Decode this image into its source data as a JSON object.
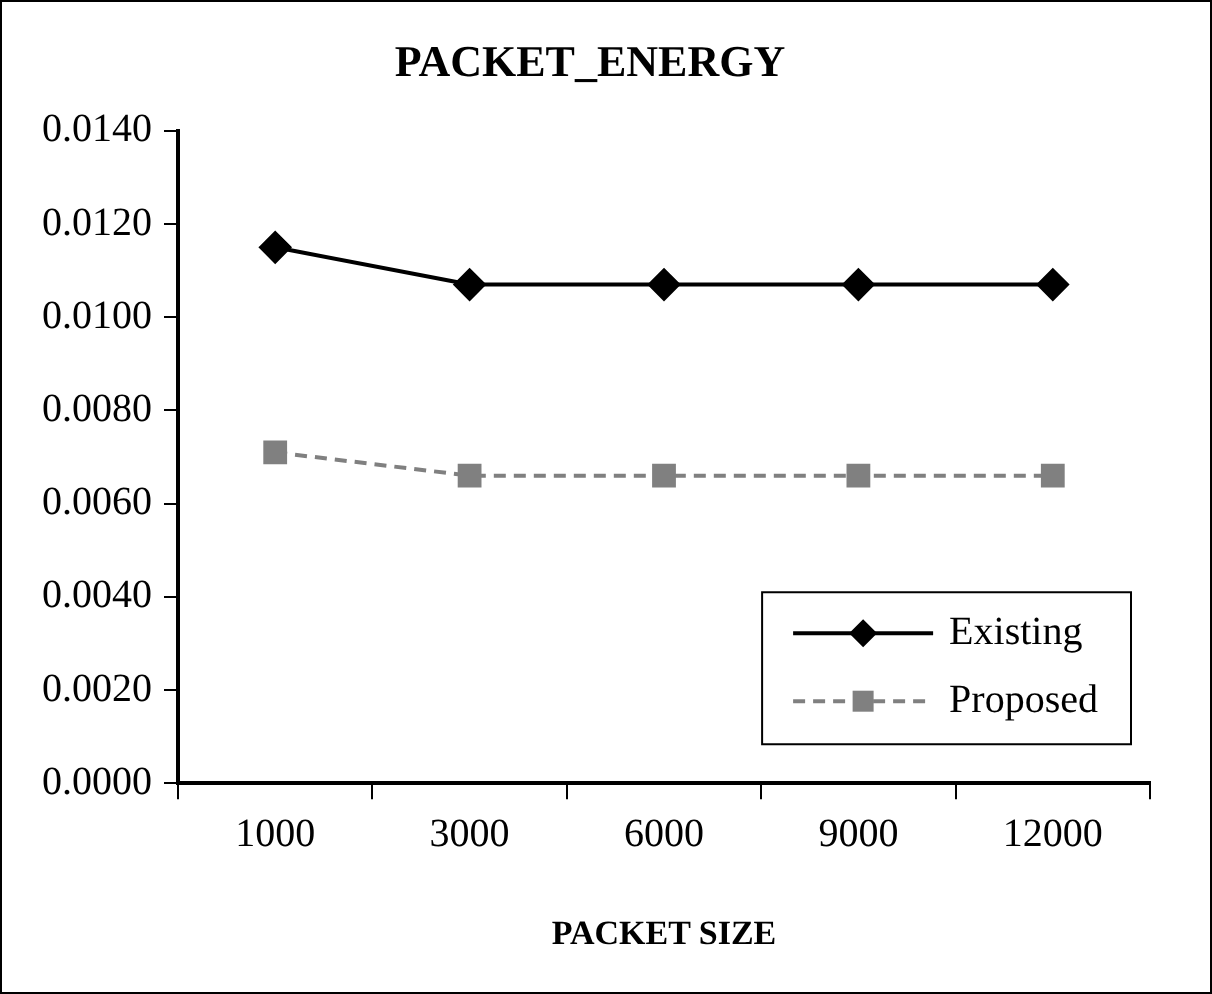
{
  "chart_data": {
    "type": "line",
    "title": "PACKET_ENERGY",
    "xlabel": "PACKET SIZE",
    "categories": [
      "1000",
      "3000",
      "6000",
      "9000",
      "12000"
    ],
    "series": [
      {
        "name": "Existing",
        "color": "#000000",
        "values": [
          0.0115,
          0.0107,
          0.0107,
          0.0107,
          0.0107
        ],
        "marker": "diamond",
        "line_style": "solid"
      },
      {
        "name": "Proposed",
        "color": "#808080",
        "values": [
          0.0071,
          0.0066,
          0.0066,
          0.0066,
          0.0066
        ],
        "marker": "square",
        "line_style": "dashed"
      }
    ],
    "ylim": [
      0,
      0.014
    ],
    "yticks": [
      {
        "value": 0,
        "label": "0.0000"
      },
      {
        "value": 0.002,
        "label": "0.0020"
      },
      {
        "value": 0.004,
        "label": "0.0040"
      },
      {
        "value": 0.006,
        "label": "0.0060"
      },
      {
        "value": 0.008,
        "label": "0.0080"
      },
      {
        "value": 0.01,
        "label": "0.0100"
      },
      {
        "value": 0.012,
        "label": "0.0120"
      },
      {
        "value": 0.014,
        "label": "0.0140"
      }
    ],
    "grid": false,
    "legend": "bottom right"
  }
}
